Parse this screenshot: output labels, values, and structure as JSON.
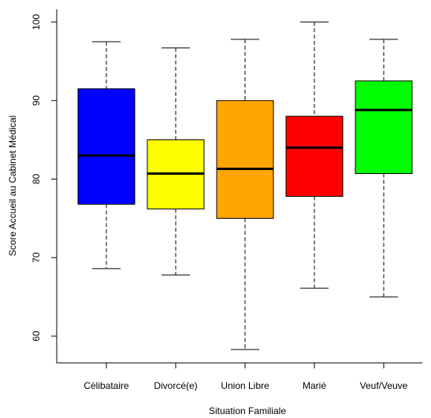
{
  "chart_data": {
    "type": "boxplot",
    "title": "",
    "xlabel": "Situation Familiale",
    "ylabel": "Score Accueil au Cabinet Médical",
    "ylim": [
      56,
      101.5
    ],
    "yticks": [
      60,
      70,
      80,
      90,
      100
    ],
    "grid": false,
    "legend": "none",
    "categories": [
      "Célibataire",
      "Divorcé(e)",
      "Union Libre",
      "Marié",
      "Veuf/Veuve"
    ],
    "boxes": [
      {
        "category": "Célibataire",
        "min": 68.6,
        "q1": 76.8,
        "median": 83.0,
        "q3": 91.5,
        "max": 97.5,
        "color": "#0000ff"
      },
      {
        "category": "Divorcé(e)",
        "min": 67.8,
        "q1": 76.2,
        "median": 80.7,
        "q3": 85.0,
        "max": 96.7,
        "color": "#ffff00"
      },
      {
        "category": "Union Libre",
        "min": 58.3,
        "q1": 75.0,
        "median": 81.3,
        "q3": 90.0,
        "max": 97.8,
        "color": "#ffa500"
      },
      {
        "category": "Marié",
        "min": 66.1,
        "q1": 77.8,
        "median": 84.0,
        "q3": 88.0,
        "max": 100.0,
        "color": "#ff0000"
      },
      {
        "category": "Veuf/Veuve",
        "min": 65.0,
        "q1": 80.7,
        "median": 88.8,
        "q3": 92.5,
        "max": 97.8,
        "color": "#00ff00"
      }
    ]
  }
}
